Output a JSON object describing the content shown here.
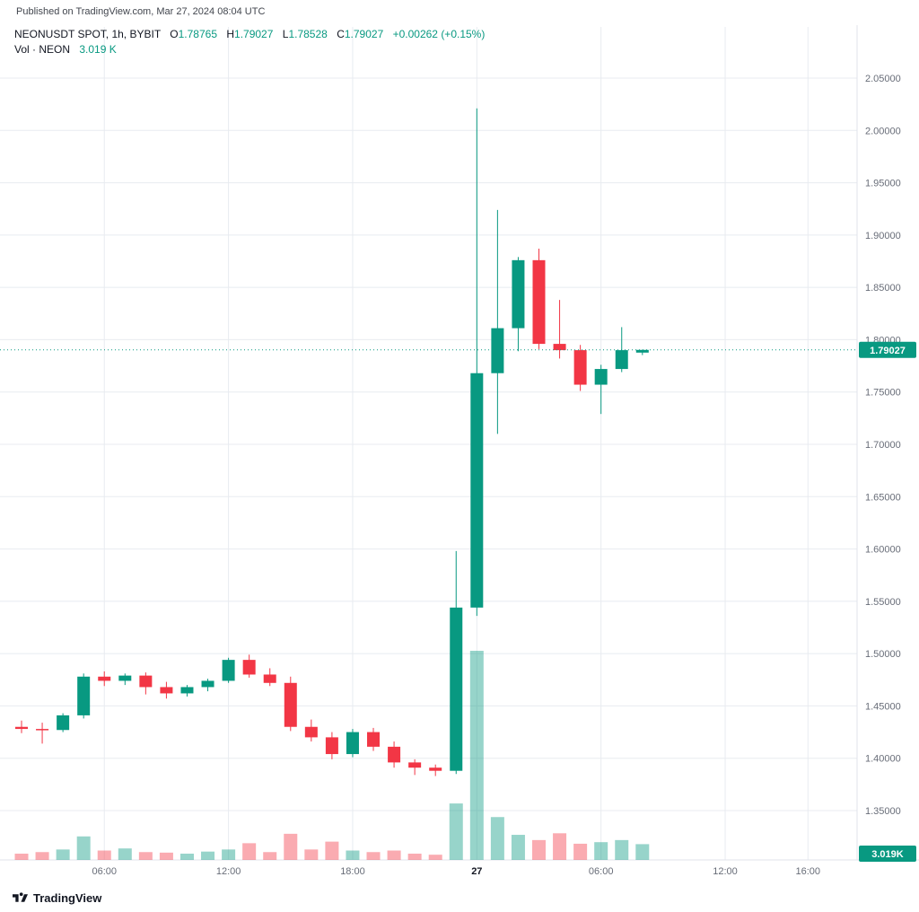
{
  "header": {
    "published": "Published on TradingView.com, Mar 27, 2024 08:04 UTC"
  },
  "legend": {
    "symbol": "NEONUSDT SPOT, 1h, BYBIT",
    "ohlc": [
      {
        "k": "O",
        "v": "1.78765"
      },
      {
        "k": "H",
        "v": "1.79027"
      },
      {
        "k": "L",
        "v": "1.78528"
      },
      {
        "k": "C",
        "v": "1.79027"
      }
    ],
    "change": "+0.00262 (+0.15%)",
    "vol_label": "Vol · NEON",
    "vol_value": "3.019 K"
  },
  "footer": {
    "brand": "TradingView"
  },
  "colors": {
    "up": "#089981",
    "down": "#f23645",
    "accent": "#089981",
    "grid": "#e8ebf0",
    "axis_text": "#686d78",
    "dark_text": "#131722",
    "axis_border": "#e0e3eb"
  },
  "chart_data": {
    "type": "candlestick",
    "title": "NEONUSDT SPOT, 1h, BYBIT",
    "xlabel": "",
    "ylabel": "",
    "grid": true,
    "legend_position": "top-left",
    "current_price": 1.79027,
    "last_price_label": "1.79027",
    "last_volume_label": "3.019K",
    "volume_unit": "K",
    "price_axis": {
      "min": 1.35,
      "max": 2.05,
      "decimals": 5,
      "ticks": [
        2.05,
        2.0,
        1.95,
        1.9,
        1.85,
        1.8,
        1.75,
        1.7,
        1.65,
        1.6,
        1.55,
        1.5,
        1.45,
        1.4,
        1.35
      ]
    },
    "time_axis": [
      {
        "index": 4,
        "label": "06:00",
        "emphasis": false
      },
      {
        "index": 10,
        "label": "12:00",
        "emphasis": false
      },
      {
        "index": 16,
        "label": "18:00",
        "emphasis": false
      },
      {
        "index": 22,
        "label": "27",
        "emphasis": true
      },
      {
        "index": 28,
        "label": "06:00",
        "emphasis": false
      },
      {
        "index": 34,
        "label": "12:00",
        "emphasis": false
      },
      {
        "index": 38,
        "label": "16:00",
        "emphasis": false
      }
    ],
    "candles": [
      [
        1.43,
        1.436,
        1.424,
        1.428,
        1.2
      ],
      [
        1.428,
        1.434,
        1.414,
        1.427,
        1.5
      ],
      [
        1.427,
        1.443,
        1.425,
        1.441,
        2.0
      ],
      [
        1.441,
        1.481,
        1.438,
        1.478,
        4.5
      ],
      [
        1.478,
        1.483,
        1.469,
        1.474,
        1.8
      ],
      [
        1.474,
        1.481,
        1.47,
        1.479,
        2.2
      ],
      [
        1.479,
        1.482,
        1.461,
        1.468,
        1.5
      ],
      [
        1.468,
        1.473,
        1.457,
        1.462,
        1.4
      ],
      [
        1.462,
        1.47,
        1.459,
        1.468,
        1.2
      ],
      [
        1.468,
        1.476,
        1.464,
        1.474,
        1.6
      ],
      [
        1.474,
        1.496,
        1.472,
        1.494,
        2.0
      ],
      [
        1.494,
        1.499,
        1.477,
        1.48,
        3.2
      ],
      [
        1.48,
        1.486,
        1.469,
        1.472,
        1.5
      ],
      [
        1.472,
        1.478,
        1.426,
        1.43,
        5.0
      ],
      [
        1.43,
        1.437,
        1.416,
        1.42,
        2.0
      ],
      [
        1.42,
        1.425,
        1.399,
        1.404,
        3.5
      ],
      [
        1.404,
        1.428,
        1.401,
        1.425,
        1.8
      ],
      [
        1.425,
        1.429,
        1.407,
        1.411,
        1.5
      ],
      [
        1.411,
        1.416,
        1.391,
        1.396,
        1.8
      ],
      [
        1.396,
        1.399,
        1.384,
        1.391,
        1.2
      ],
      [
        1.391,
        1.394,
        1.383,
        1.388,
        1.0
      ],
      [
        1.388,
        1.598,
        1.385,
        1.544,
        10.8
      ],
      [
        1.544,
        2.021,
        1.536,
        1.768,
        40.0
      ],
      [
        1.768,
        1.924,
        1.71,
        1.811,
        8.2
      ],
      [
        1.811,
        1.879,
        1.789,
        1.876,
        4.8
      ],
      [
        1.876,
        1.887,
        1.791,
        1.796,
        3.8
      ],
      [
        1.796,
        1.838,
        1.782,
        1.79,
        5.1
      ],
      [
        1.79,
        1.795,
        1.751,
        1.757,
        3.1
      ],
      [
        1.757,
        1.776,
        1.729,
        1.772,
        3.4
      ],
      [
        1.772,
        1.812,
        1.769,
        1.79,
        3.8
      ],
      [
        1.78765,
        1.79027,
        1.78528,
        1.79027,
        3.019
      ]
    ]
  }
}
